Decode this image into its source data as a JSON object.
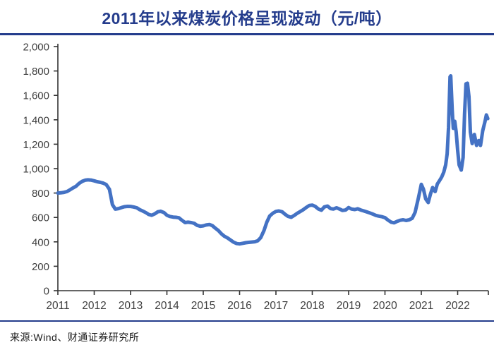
{
  "header": {
    "title": "2011年以来煤炭价格呈现波动（元/吨）"
  },
  "footer": {
    "source": "来源:Wind、财通证券研究所"
  },
  "colors": {
    "accent_navy": "#243c8c",
    "line_blue": "#4472c4",
    "axis": "#333333",
    "tick_label": "#3f3f3f"
  },
  "chart_data": {
    "type": "line",
    "title": "2011年以来煤炭价格呈现波动（元/吨）",
    "xlabel": "",
    "ylabel": "",
    "ylim": [
      0,
      2000
    ],
    "xlim": [
      2011,
      2022.9
    ],
    "grid": false,
    "legend": "none",
    "y_ticks": [
      0,
      200,
      400,
      600,
      800,
      1000,
      1200,
      1400,
      1600,
      1800,
      2000
    ],
    "y_tick_labels": [
      "0",
      "200",
      "400",
      "600",
      "800",
      "1,000",
      "1,200",
      "1,400",
      "1,600",
      "1,800",
      "2,000"
    ],
    "x_tick_labels": [
      "2011",
      "2012",
      "2013",
      "2014",
      "2015",
      "2016",
      "2017",
      "2018",
      "2019",
      "2020",
      "2021",
      "2022"
    ],
    "series": [
      {
        "name": "煤炭价格",
        "points": [
          [
            2011.0,
            800
          ],
          [
            2011.08,
            802
          ],
          [
            2011.17,
            806
          ],
          [
            2011.25,
            812
          ],
          [
            2011.33,
            826
          ],
          [
            2011.42,
            842
          ],
          [
            2011.5,
            856
          ],
          [
            2011.58,
            878
          ],
          [
            2011.67,
            896
          ],
          [
            2011.75,
            905
          ],
          [
            2011.83,
            908
          ],
          [
            2011.92,
            906
          ],
          [
            2012.0,
            900
          ],
          [
            2012.08,
            893
          ],
          [
            2012.17,
            887
          ],
          [
            2012.25,
            881
          ],
          [
            2012.33,
            870
          ],
          [
            2012.42,
            830
          ],
          [
            2012.5,
            705
          ],
          [
            2012.58,
            668
          ],
          [
            2012.67,
            673
          ],
          [
            2012.75,
            681
          ],
          [
            2012.83,
            688
          ],
          [
            2012.92,
            691
          ],
          [
            2013.0,
            690
          ],
          [
            2013.08,
            686
          ],
          [
            2013.17,
            679
          ],
          [
            2013.25,
            664
          ],
          [
            2013.33,
            653
          ],
          [
            2013.42,
            640
          ],
          [
            2013.5,
            624
          ],
          [
            2013.58,
            618
          ],
          [
            2013.67,
            630
          ],
          [
            2013.75,
            646
          ],
          [
            2013.83,
            651
          ],
          [
            2013.92,
            640
          ],
          [
            2014.0,
            618
          ],
          [
            2014.08,
            608
          ],
          [
            2014.17,
            603
          ],
          [
            2014.25,
            601
          ],
          [
            2014.33,
            597
          ],
          [
            2014.42,
            576
          ],
          [
            2014.5,
            558
          ],
          [
            2014.58,
            561
          ],
          [
            2014.67,
            558
          ],
          [
            2014.75,
            552
          ],
          [
            2014.83,
            536
          ],
          [
            2014.92,
            528
          ],
          [
            2015.0,
            531
          ],
          [
            2015.08,
            538
          ],
          [
            2015.17,
            542
          ],
          [
            2015.25,
            533
          ],
          [
            2015.33,
            513
          ],
          [
            2015.42,
            492
          ],
          [
            2015.5,
            466
          ],
          [
            2015.58,
            446
          ],
          [
            2015.67,
            432
          ],
          [
            2015.75,
            415
          ],
          [
            2015.83,
            398
          ],
          [
            2015.92,
            386
          ],
          [
            2016.0,
            383
          ],
          [
            2016.08,
            388
          ],
          [
            2016.17,
            393
          ],
          [
            2016.25,
            396
          ],
          [
            2016.33,
            398
          ],
          [
            2016.42,
            401
          ],
          [
            2016.5,
            409
          ],
          [
            2016.58,
            434
          ],
          [
            2016.67,
            492
          ],
          [
            2016.75,
            562
          ],
          [
            2016.83,
            612
          ],
          [
            2016.92,
            636
          ],
          [
            2017.0,
            649
          ],
          [
            2017.08,
            653
          ],
          [
            2017.17,
            646
          ],
          [
            2017.25,
            626
          ],
          [
            2017.33,
            609
          ],
          [
            2017.42,
            601
          ],
          [
            2017.5,
            616
          ],
          [
            2017.58,
            633
          ],
          [
            2017.67,
            649
          ],
          [
            2017.75,
            663
          ],
          [
            2017.83,
            681
          ],
          [
            2017.92,
            698
          ],
          [
            2018.0,
            701
          ],
          [
            2018.08,
            691
          ],
          [
            2018.17,
            669
          ],
          [
            2018.25,
            659
          ],
          [
            2018.33,
            686
          ],
          [
            2018.42,
            693
          ],
          [
            2018.5,
            673
          ],
          [
            2018.58,
            669
          ],
          [
            2018.67,
            679
          ],
          [
            2018.75,
            669
          ],
          [
            2018.83,
            657
          ],
          [
            2018.92,
            661
          ],
          [
            2019.0,
            681
          ],
          [
            2019.08,
            669
          ],
          [
            2019.17,
            665
          ],
          [
            2019.25,
            671
          ],
          [
            2019.33,
            661
          ],
          [
            2019.42,
            653
          ],
          [
            2019.5,
            645
          ],
          [
            2019.58,
            637
          ],
          [
            2019.67,
            627
          ],
          [
            2019.75,
            617
          ],
          [
            2019.83,
            611
          ],
          [
            2019.92,
            606
          ],
          [
            2020.0,
            598
          ],
          [
            2020.08,
            579
          ],
          [
            2020.17,
            561
          ],
          [
            2020.25,
            556
          ],
          [
            2020.33,
            567
          ],
          [
            2020.42,
            577
          ],
          [
            2020.5,
            581
          ],
          [
            2020.58,
            575
          ],
          [
            2020.67,
            581
          ],
          [
            2020.75,
            593
          ],
          [
            2020.83,
            642
          ],
          [
            2020.92,
            760
          ],
          [
            2021.0,
            871
          ],
          [
            2021.06,
            830
          ],
          [
            2021.12,
            752
          ],
          [
            2021.19,
            722
          ],
          [
            2021.25,
            790
          ],
          [
            2021.31,
            845
          ],
          [
            2021.38,
            812
          ],
          [
            2021.44,
            874
          ],
          [
            2021.5,
            902
          ],
          [
            2021.56,
            930
          ],
          [
            2021.62,
            972
          ],
          [
            2021.67,
            1030
          ],
          [
            2021.71,
            1120
          ],
          [
            2021.75,
            1340
          ],
          [
            2021.79,
            1752
          ],
          [
            2021.81,
            1760
          ],
          [
            2021.85,
            1480
          ],
          [
            2021.88,
            1330
          ],
          [
            2021.92,
            1388
          ],
          [
            2021.96,
            1300
          ],
          [
            2022.0,
            1150
          ],
          [
            2022.04,
            1030
          ],
          [
            2022.1,
            988
          ],
          [
            2022.15,
            1090
          ],
          [
            2022.19,
            1450
          ],
          [
            2022.23,
            1695
          ],
          [
            2022.27,
            1700
          ],
          [
            2022.31,
            1590
          ],
          [
            2022.35,
            1300
          ],
          [
            2022.4,
            1205
          ],
          [
            2022.46,
            1280
          ],
          [
            2022.52,
            1190
          ],
          [
            2022.58,
            1230
          ],
          [
            2022.63,
            1190
          ],
          [
            2022.69,
            1310
          ],
          [
            2022.75,
            1382
          ],
          [
            2022.79,
            1440
          ],
          [
            2022.83,
            1410
          ]
        ]
      }
    ]
  }
}
